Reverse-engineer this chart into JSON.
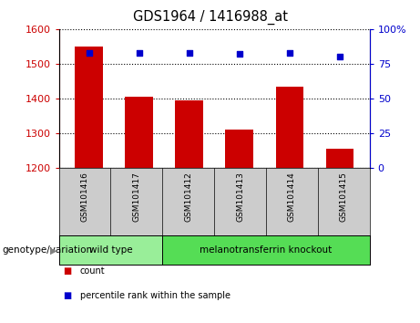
{
  "title": "GDS1964 / 1416988_at",
  "samples": [
    "GSM101416",
    "GSM101417",
    "GSM101412",
    "GSM101413",
    "GSM101414",
    "GSM101415"
  ],
  "counts": [
    1549,
    1405,
    1395,
    1310,
    1435,
    1255
  ],
  "percentiles": [
    83,
    83,
    83,
    82,
    83,
    80
  ],
  "ylim_left": [
    1200,
    1600
  ],
  "ylim_right": [
    0,
    100
  ],
  "yticks_left": [
    1200,
    1300,
    1400,
    1500,
    1600
  ],
  "yticks_right": [
    0,
    25,
    50,
    75,
    100
  ],
  "ytick_labels_right": [
    "0",
    "25",
    "50",
    "75",
    "100%"
  ],
  "bar_color": "#cc0000",
  "dot_color": "#0000cc",
  "groups": [
    {
      "label": "wild type",
      "indices": [
        0,
        1
      ],
      "color": "#99ee99"
    },
    {
      "label": "melanotransferrin knockout",
      "indices": [
        2,
        3,
        4,
        5
      ],
      "color": "#55dd55"
    }
  ],
  "group_label": "genotype/variation",
  "legend_items": [
    {
      "label": "count",
      "color": "#cc0000"
    },
    {
      "label": "percentile rank within the sample",
      "color": "#0000cc"
    }
  ],
  "tick_box_color": "#cccccc",
  "bar_width": 0.55
}
